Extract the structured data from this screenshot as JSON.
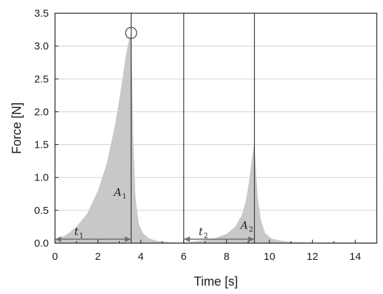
{
  "chart_data": {
    "type": "area",
    "title": "",
    "xlabel": "Time [s]",
    "ylabel": "Force [N]",
    "xlim": [
      0,
      15
    ],
    "ylim": [
      0,
      3.5
    ],
    "xticks": [
      0,
      2,
      4,
      6,
      8,
      10,
      12,
      14
    ],
    "yticks": [
      0.0,
      0.5,
      1.0,
      1.5,
      2.0,
      2.5,
      3.0,
      3.5
    ],
    "xtick_labels": [
      "0",
      "2",
      "4",
      "6",
      "8",
      "10",
      "12",
      "14"
    ],
    "ytick_labels": [
      "0.0",
      "0.5",
      "1.0",
      "1.5",
      "2.0",
      "2.5",
      "3.0",
      "3.5"
    ],
    "grid": "horizontal",
    "fill_color": "#c8c8c8",
    "series": [
      {
        "x": [
          0,
          0.5,
          1.0,
          1.5,
          2.0,
          2.4,
          2.8,
          3.1,
          3.3,
          3.45,
          3.55,
          3.6,
          3.65,
          3.75,
          3.9,
          4.1,
          4.4,
          4.8,
          5.5,
          6.0,
          6.3,
          7.0,
          7.5,
          8.0,
          8.4,
          8.7,
          8.9,
          9.05,
          9.15,
          9.25,
          9.3,
          9.35,
          9.45,
          9.6,
          9.8,
          10.1,
          10.5,
          11.0,
          12.0,
          13.0,
          14.0,
          15.0
        ],
        "y": [
          0.05,
          0.12,
          0.25,
          0.45,
          0.8,
          1.2,
          1.8,
          2.4,
          2.85,
          3.1,
          3.18,
          2.5,
          1.6,
          0.7,
          0.3,
          0.15,
          0.07,
          0.03,
          0.01,
          0.01,
          0.02,
          0.05,
          0.08,
          0.14,
          0.25,
          0.42,
          0.65,
          0.95,
          1.2,
          1.45,
          1.52,
          1.2,
          0.7,
          0.35,
          0.15,
          0.07,
          0.04,
          0.02,
          0.01,
          0.01,
          0.01,
          0.01
        ]
      }
    ],
    "vertical_lines_x": [
      3.55,
      6.0,
      9.3
    ],
    "peak_marker": {
      "x": 3.55,
      "y": 3.2
    },
    "annotations": [
      {
        "text": "t",
        "sub": "1",
        "x": 0.9,
        "y": 0.12
      },
      {
        "text": "A",
        "sub": "1",
        "x": 2.75,
        "y": 0.72
      },
      {
        "text": "t",
        "sub": "2",
        "x": 6.7,
        "y": 0.12
      },
      {
        "text": "A",
        "sub": "2",
        "x": 8.65,
        "y": 0.22
      }
    ],
    "intervals": [
      {
        "x_start": 0,
        "x_end": 3.55,
        "y": 0.06
      },
      {
        "x_start": 6.0,
        "x_end": 9.3,
        "y": 0.06
      }
    ]
  }
}
